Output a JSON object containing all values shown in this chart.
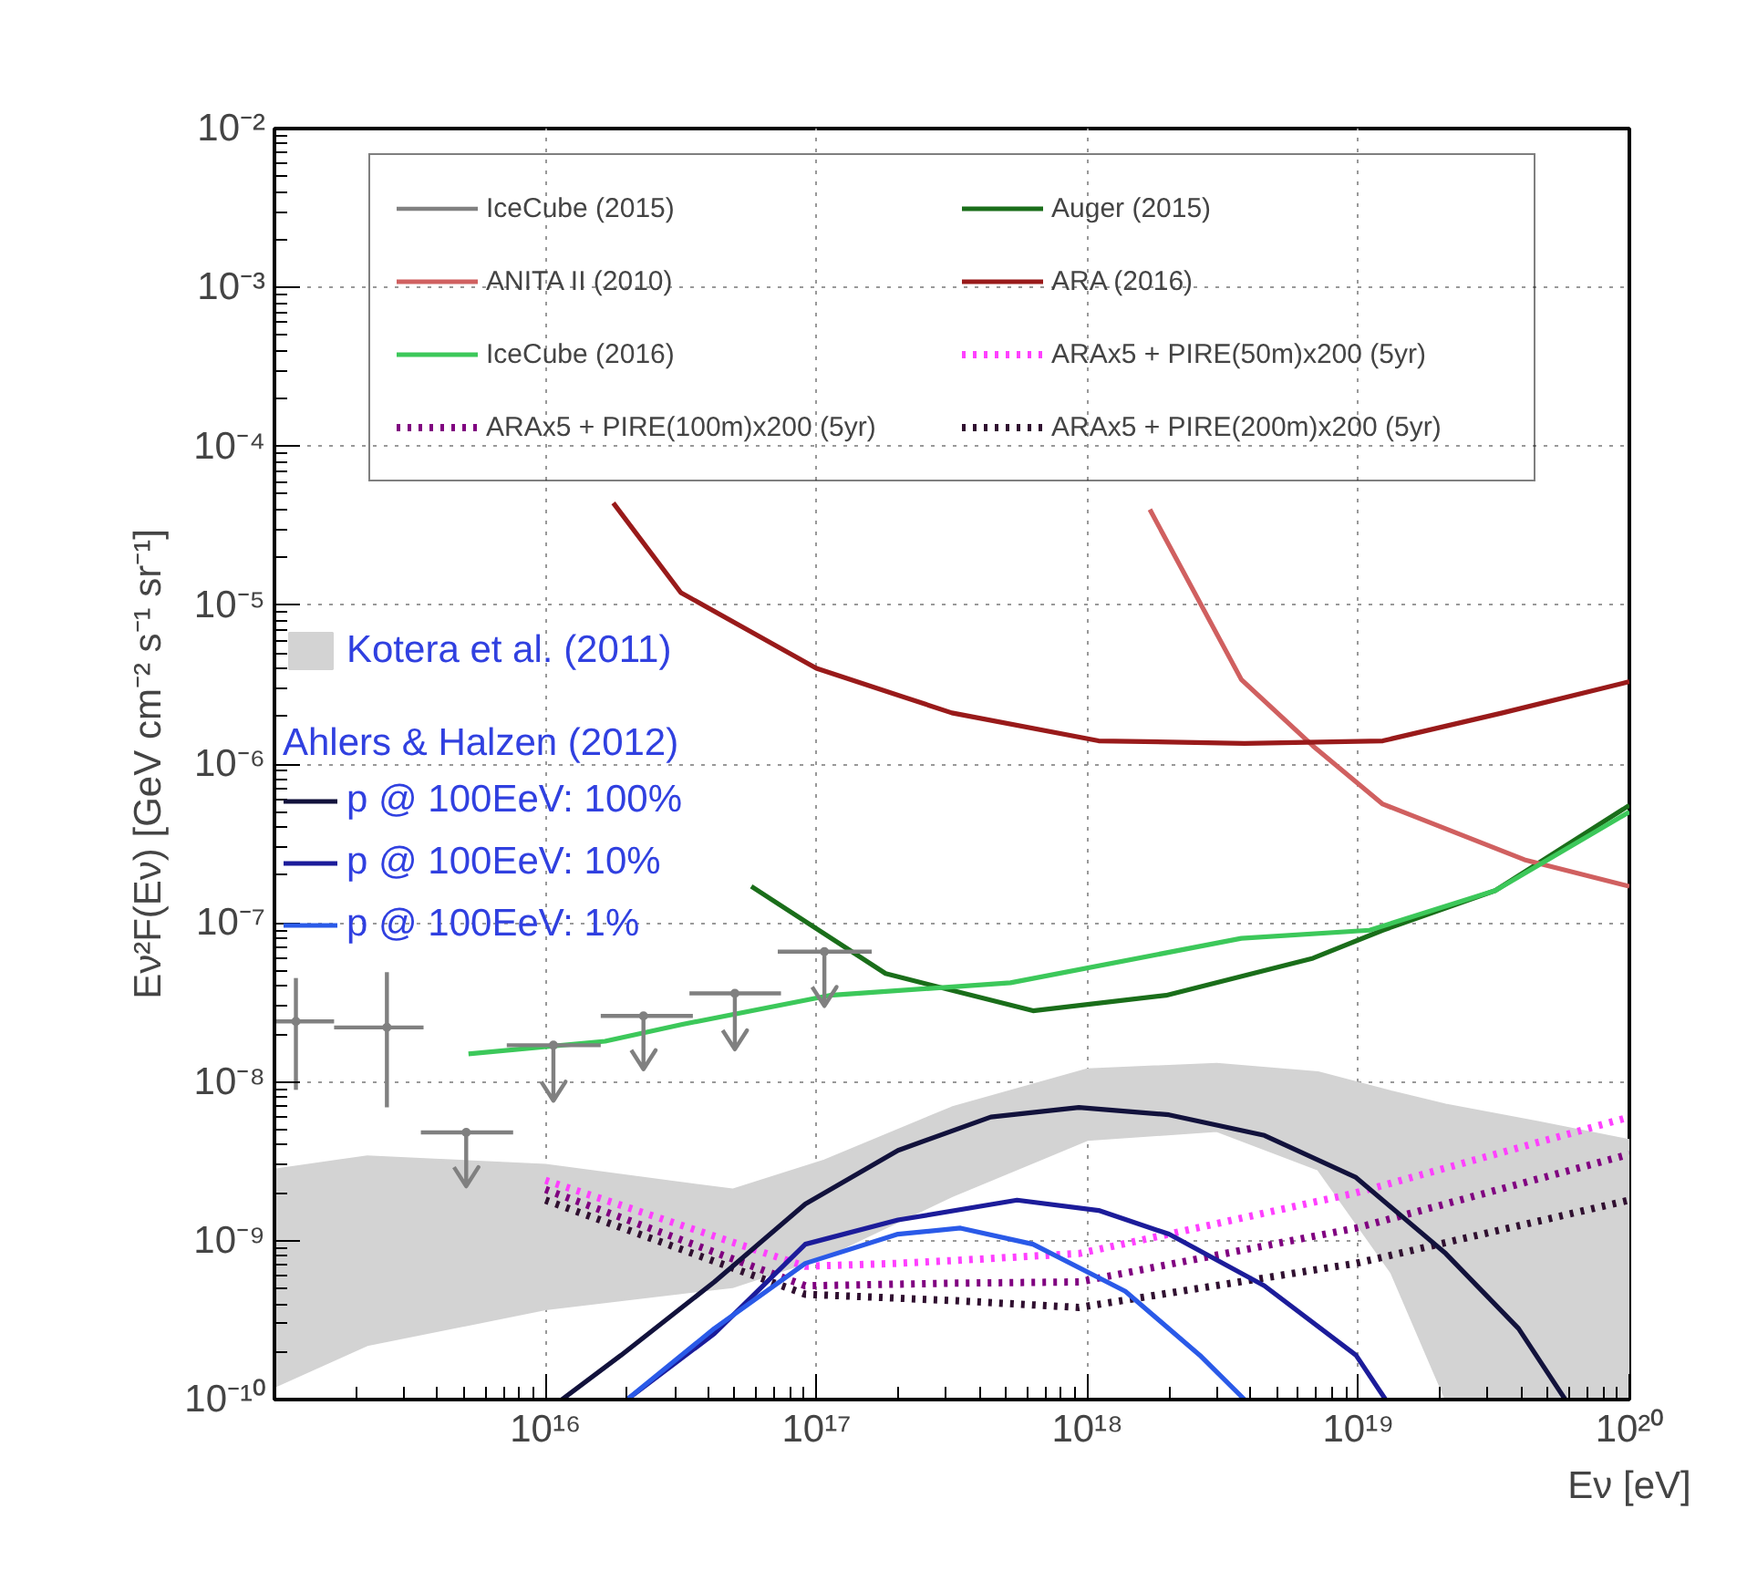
{
  "chart_data": {
    "type": "line",
    "xlabel": "Eν [eV]",
    "ylabel": "Eν²F(Eν) [GeV cm⁻² s⁻¹ sr⁻¹]",
    "log": "xy",
    "grid": true,
    "legend": "top",
    "legend_title": "Ahlers & Halzen (2012)",
    "xlim": [
      1000000000000000.0,
      1e+20
    ],
    "ylim": [
      1e-10,
      0.01
    ],
    "xticks": [
      {
        "value": 1e+16,
        "label": "10¹⁶"
      },
      {
        "value": 1e+17,
        "label": "10¹⁷"
      },
      {
        "value": 1e+18,
        "label": "10¹⁸"
      },
      {
        "value": 1e+19,
        "label": "10¹⁹"
      },
      {
        "value": 1e+20,
        "label": "10²⁰"
      }
    ],
    "yticks": [
      {
        "value": 1e-10,
        "label": "10⁻¹⁰"
      },
      {
        "value": 1e-09,
        "label": "10⁻⁹"
      },
      {
        "value": 1e-08,
        "label": "10⁻⁸"
      },
      {
        "value": 1e-07,
        "label": "10⁻⁷"
      },
      {
        "value": 1e-06,
        "label": "10⁻⁶"
      },
      {
        "value": 1e-05,
        "label": "10⁻⁵"
      },
      {
        "value": 0.0001,
        "label": "10⁻⁴"
      },
      {
        "value": 0.001,
        "label": "10⁻³"
      },
      {
        "value": 0.01,
        "label": "10⁻²"
      }
    ],
    "series": [
      {
        "name": "IceCube (2015)",
        "type": "scatter",
        "marker": "circle",
        "color": "#808080",
        "x": [
          1200000000000000.0,
          2600000000000000.0,
          5100000000000000.0,
          1.07e+16,
          2.3e+16,
          5e+16,
          1.07e+17
        ],
        "values": [
          2.4e-08,
          2.2e-08,
          4.8e-09,
          1.7e-08,
          2.6e-08,
          3.6e-08,
          6.6e-08
        ],
        "xerrors": [
          [
            1000000000000000.0,
            1660000000000000.0
          ],
          [
            1660000000000000.0,
            3550000000000000.0
          ],
          [
            3470000000000000.0,
            7600000000000000.0
          ],
          [
            7200000000000000.0,
            1.6e+16
          ],
          [
            1.6e+16,
            3.5e+16
          ],
          [
            3.4e+16,
            7.4e+16
          ],
          [
            7.2e+16,
            1.6e+17
          ]
        ],
        "errors": [
          [
            8.9e-09,
            4.5e-08
          ],
          [
            6.9e-09,
            4.9e-08
          ],
          [
            2.2e-09,
            4.8e-09
          ],
          [
            7.6e-09,
            1.7e-08
          ],
          [
            1.2e-08,
            2.6e-08
          ],
          [
            1.6e-08,
            3.6e-08
          ],
          [
            3e-08,
            6.6e-08
          ]
        ]
      },
      {
        "name": "Auger (2015)",
        "color": "#1a6e1a",
        "x": [
          5.75e+16,
          1.8e+17,
          6.3e+17,
          1.95e+18,
          6.8e+18,
          1.23e+19,
          3.2e+19,
          1e+20
        ],
        "values": [
          1.7e-07,
          4.8e-08,
          2.8e-08,
          3.5e-08,
          6e-08,
          9e-08,
          1.6e-07,
          5.5e-07
        ]
      },
      {
        "name": "ANITA II (2010)",
        "color": "#d06060",
        "x": [
          1.7e+18,
          3.7e+18,
          6.8e+18,
          1.23e+19,
          4.1e+19,
          1e+20
        ],
        "values": [
          4e-05,
          3.4e-06,
          1.3e-06,
          5.6e-07,
          2.5e-07,
          1.7e-07
        ]
      },
      {
        "name": "ARA (2016)",
        "color": "#991a1a",
        "x": [
          1.78e+16,
          3.16e+16,
          1e+17,
          3.16e+17,
          1.1e+18,
          3.8e+18,
          1.23e+19,
          3.4e+19,
          1e+20
        ],
        "values": [
          4.4e-05,
          1.2e-05,
          4e-06,
          2.1e-06,
          1.4e-06,
          1.35e-06,
          1.4e-06,
          2.1e-06,
          3.3e-06
        ]
      },
      {
        "name": "IceCube (2016)",
        "color": "#3cc85a",
        "x": [
          5200000000000000.0,
          1.66e+16,
          3.2e+16,
          1.12e+17,
          5.2e+17,
          3.7e+18,
          1.1e+19,
          3.2e+19,
          1e+20
        ],
        "values": [
          1.5e-08,
          1.8e-08,
          2.3e-08,
          3.5e-08,
          4.2e-08,
          8e-08,
          9e-08,
          1.6e-07,
          5e-07
        ]
      },
      {
        "name": "ARAx5 + PIRE(50m)x200 (5yr)",
        "color": "#ff40ff",
        "line_style": "dotted",
        "x": [
          1e+16,
          9.1e+16,
          2e+17,
          3.2e+17,
          9.3e+17,
          2e+18,
          9.8e+18,
          1e+20
        ],
        "values": [
          2.4e-09,
          6.9e-10,
          7.2e-10,
          7.5e-10,
          8.3e-10,
          1.1e-09,
          2e-09,
          6e-09
        ]
      },
      {
        "name": "ARAx5 + PIRE(100m)x200 (5yr)",
        "color": "#800080",
        "line_style": "dotted",
        "x": [
          1e+16,
          9.1e+16,
          3.2e+17,
          9.3e+17,
          9.8e+18,
          1e+20
        ],
        "values": [
          2.1e-09,
          5.2e-10,
          5.4e-10,
          5.5e-10,
          1.2e-09,
          3.5e-09
        ]
      },
      {
        "name": "ARAx5 + PIRE(200m)x200 (5yr)",
        "color": "#301030",
        "line_style": "dotted",
        "x": [
          1e+16,
          9.1e+16,
          3.2e+17,
          9.3e+17,
          9.8e+18,
          1e+20
        ],
        "values": [
          1.8e-09,
          4.6e-10,
          4.2e-10,
          3.8e-10,
          7.2e-10,
          1.8e-09
        ]
      },
      {
        "name": "Kotera et al. (2011)",
        "type": "area",
        "color": "#d3d3d3",
        "x": [
          1000000000000000.0,
          2200000000000000.0,
          1e+16,
          4.9e+16,
          1.07e+17,
          3.16e+17,
          1e+18,
          3e+18,
          7.1e+18,
          1.32e+19,
          2.1e+19,
          4.6e+19,
          1e+20
        ],
        "values": [
          null,
          null,
          null,
          null,
          null,
          null,
          null,
          null,
          null,
          null,
          null,
          null,
          null
        ],
        "lower": [
          1.2e-10,
          2.2e-10,
          3.7e-10,
          5.1e-10,
          7.9e-10,
          1.9e-09,
          4.3e-09,
          4.9e-09,
          2.8e-09,
          6.3e-10,
          1e-10,
          1e-10,
          1e-10
        ],
        "upper": [
          2.8e-09,
          3.4e-09,
          3e-09,
          2.1e-09,
          3.2e-09,
          6.9e-09,
          1.2e-08,
          1.3e-08,
          1.15e-08,
          8.7e-09,
          7.2e-09,
          5.6e-09,
          4.3e-09
        ]
      },
      {
        "name": "p @ 100EeV: 100%",
        "color": "#12123c",
        "x": [
          1.15e+16,
          1.9e+16,
          4.2e+16,
          9.1e+16,
          2e+17,
          4.4e+17,
          9.3e+17,
          2e+18,
          4.5e+18,
          9.8e+18,
          2.1e+19,
          3.9e+19,
          5.8e+19
        ],
        "values": [
          1e-10,
          1.9e-10,
          5.5e-10,
          1.7e-09,
          3.7e-09,
          6e-09,
          6.9e-09,
          6.2e-09,
          4.6e-09,
          2.5e-09,
          8.3e-10,
          2.8e-10,
          1e-10
        ]
      },
      {
        "name": "p @ 100EeV: 10%",
        "color": "#1c1c9a",
        "x": [
          2e+16,
          4.2e+16,
          9.1e+16,
          2e+17,
          5.5e+17,
          1.1e+18,
          2e+18,
          4.5e+18,
          9.8e+18,
          1.26e+19
        ],
        "values": [
          1e-10,
          2.6e-10,
          9.5e-10,
          1.35e-09,
          1.8e-09,
          1.55e-09,
          1.1e-09,
          5.2e-10,
          1.9e-10,
          1e-10
        ]
      },
      {
        "name": "p @ 100EeV: 1%",
        "color": "#2a5ae8",
        "x": [
          2e+16,
          4.2e+16,
          9.1e+16,
          2e+17,
          3.4e+17,
          6.3e+17,
          1.38e+18,
          2.6e+18,
          3.8e+18
        ],
        "values": [
          1e-10,
          2.8e-10,
          7.2e-10,
          1.1e-09,
          1.2e-09,
          9.5e-10,
          4.8e-10,
          1.9e-10,
          1e-10
        ]
      }
    ]
  }
}
